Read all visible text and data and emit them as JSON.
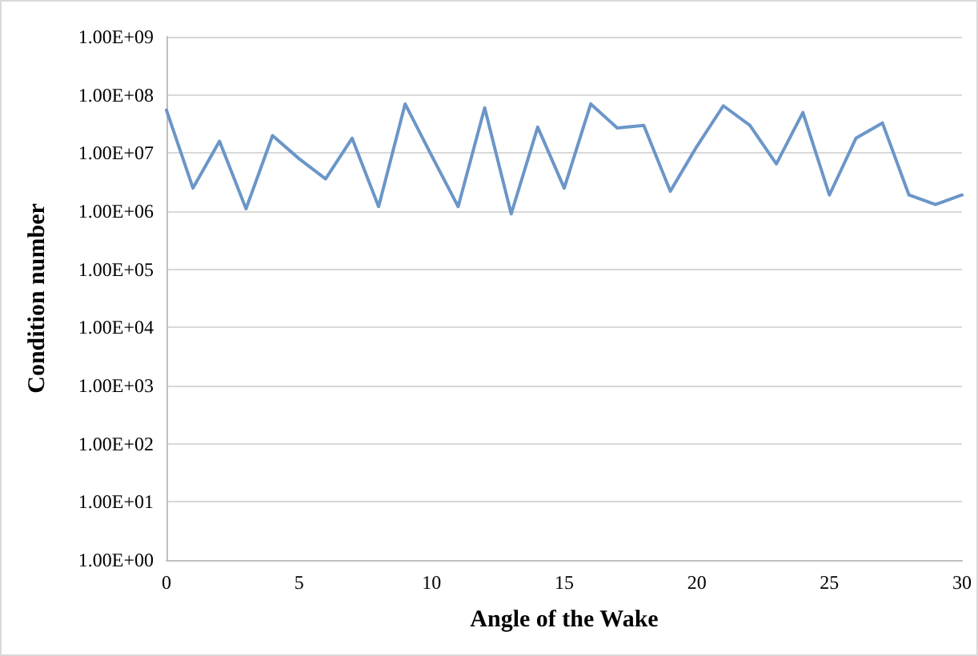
{
  "chart_data": {
    "type": "line",
    "xlabel": "Angle of the Wake",
    "ylabel": "Condition number",
    "log": "y",
    "grid": "y",
    "marker": "none",
    "line_style": "solid",
    "x": [
      0,
      1,
      2,
      3,
      4,
      5,
      6,
      7,
      8,
      9,
      10,
      11,
      12,
      13,
      14,
      15,
      16,
      17,
      18,
      19,
      20,
      21,
      22,
      23,
      24,
      25,
      26,
      27,
      28,
      29,
      30
    ],
    "series": [
      {
        "color": "#6b96c8",
        "values": [
          55000000,
          2500000,
          16000000,
          1100000,
          20000000,
          8000000,
          3600000,
          18000000,
          1200000,
          70000000,
          9000000,
          1200000,
          60000000,
          900000,
          28000000,
          2500000,
          70000000,
          27000000,
          30000000,
          2200000,
          13000000,
          65000000,
          30000000,
          6500000,
          50000000,
          1900000,
          18000000,
          33000000,
          1900000,
          1300000,
          1900000
        ]
      }
    ],
    "xlim": [
      0,
      30
    ],
    "xticks": [
      0,
      5,
      10,
      15,
      20,
      25,
      30
    ],
    "ylim": [
      1,
      1000000000
    ],
    "yticks": [
      {
        "value": 1,
        "label": "1.00E+00"
      },
      {
        "value": 10,
        "label": "1.00E+01"
      },
      {
        "value": 100,
        "label": "1.00E+02"
      },
      {
        "value": 1000,
        "label": "1.00E+03"
      },
      {
        "value": 10000,
        "label": "1.00E+04"
      },
      {
        "value": 100000,
        "label": "1.00E+05"
      },
      {
        "value": 1000000,
        "label": "1.00E+06"
      },
      {
        "value": 10000000,
        "label": "1.00E+07"
      },
      {
        "value": 100000000,
        "label": "1.00E+08"
      },
      {
        "value": 1000000000,
        "label": "1.00E+09"
      }
    ]
  }
}
